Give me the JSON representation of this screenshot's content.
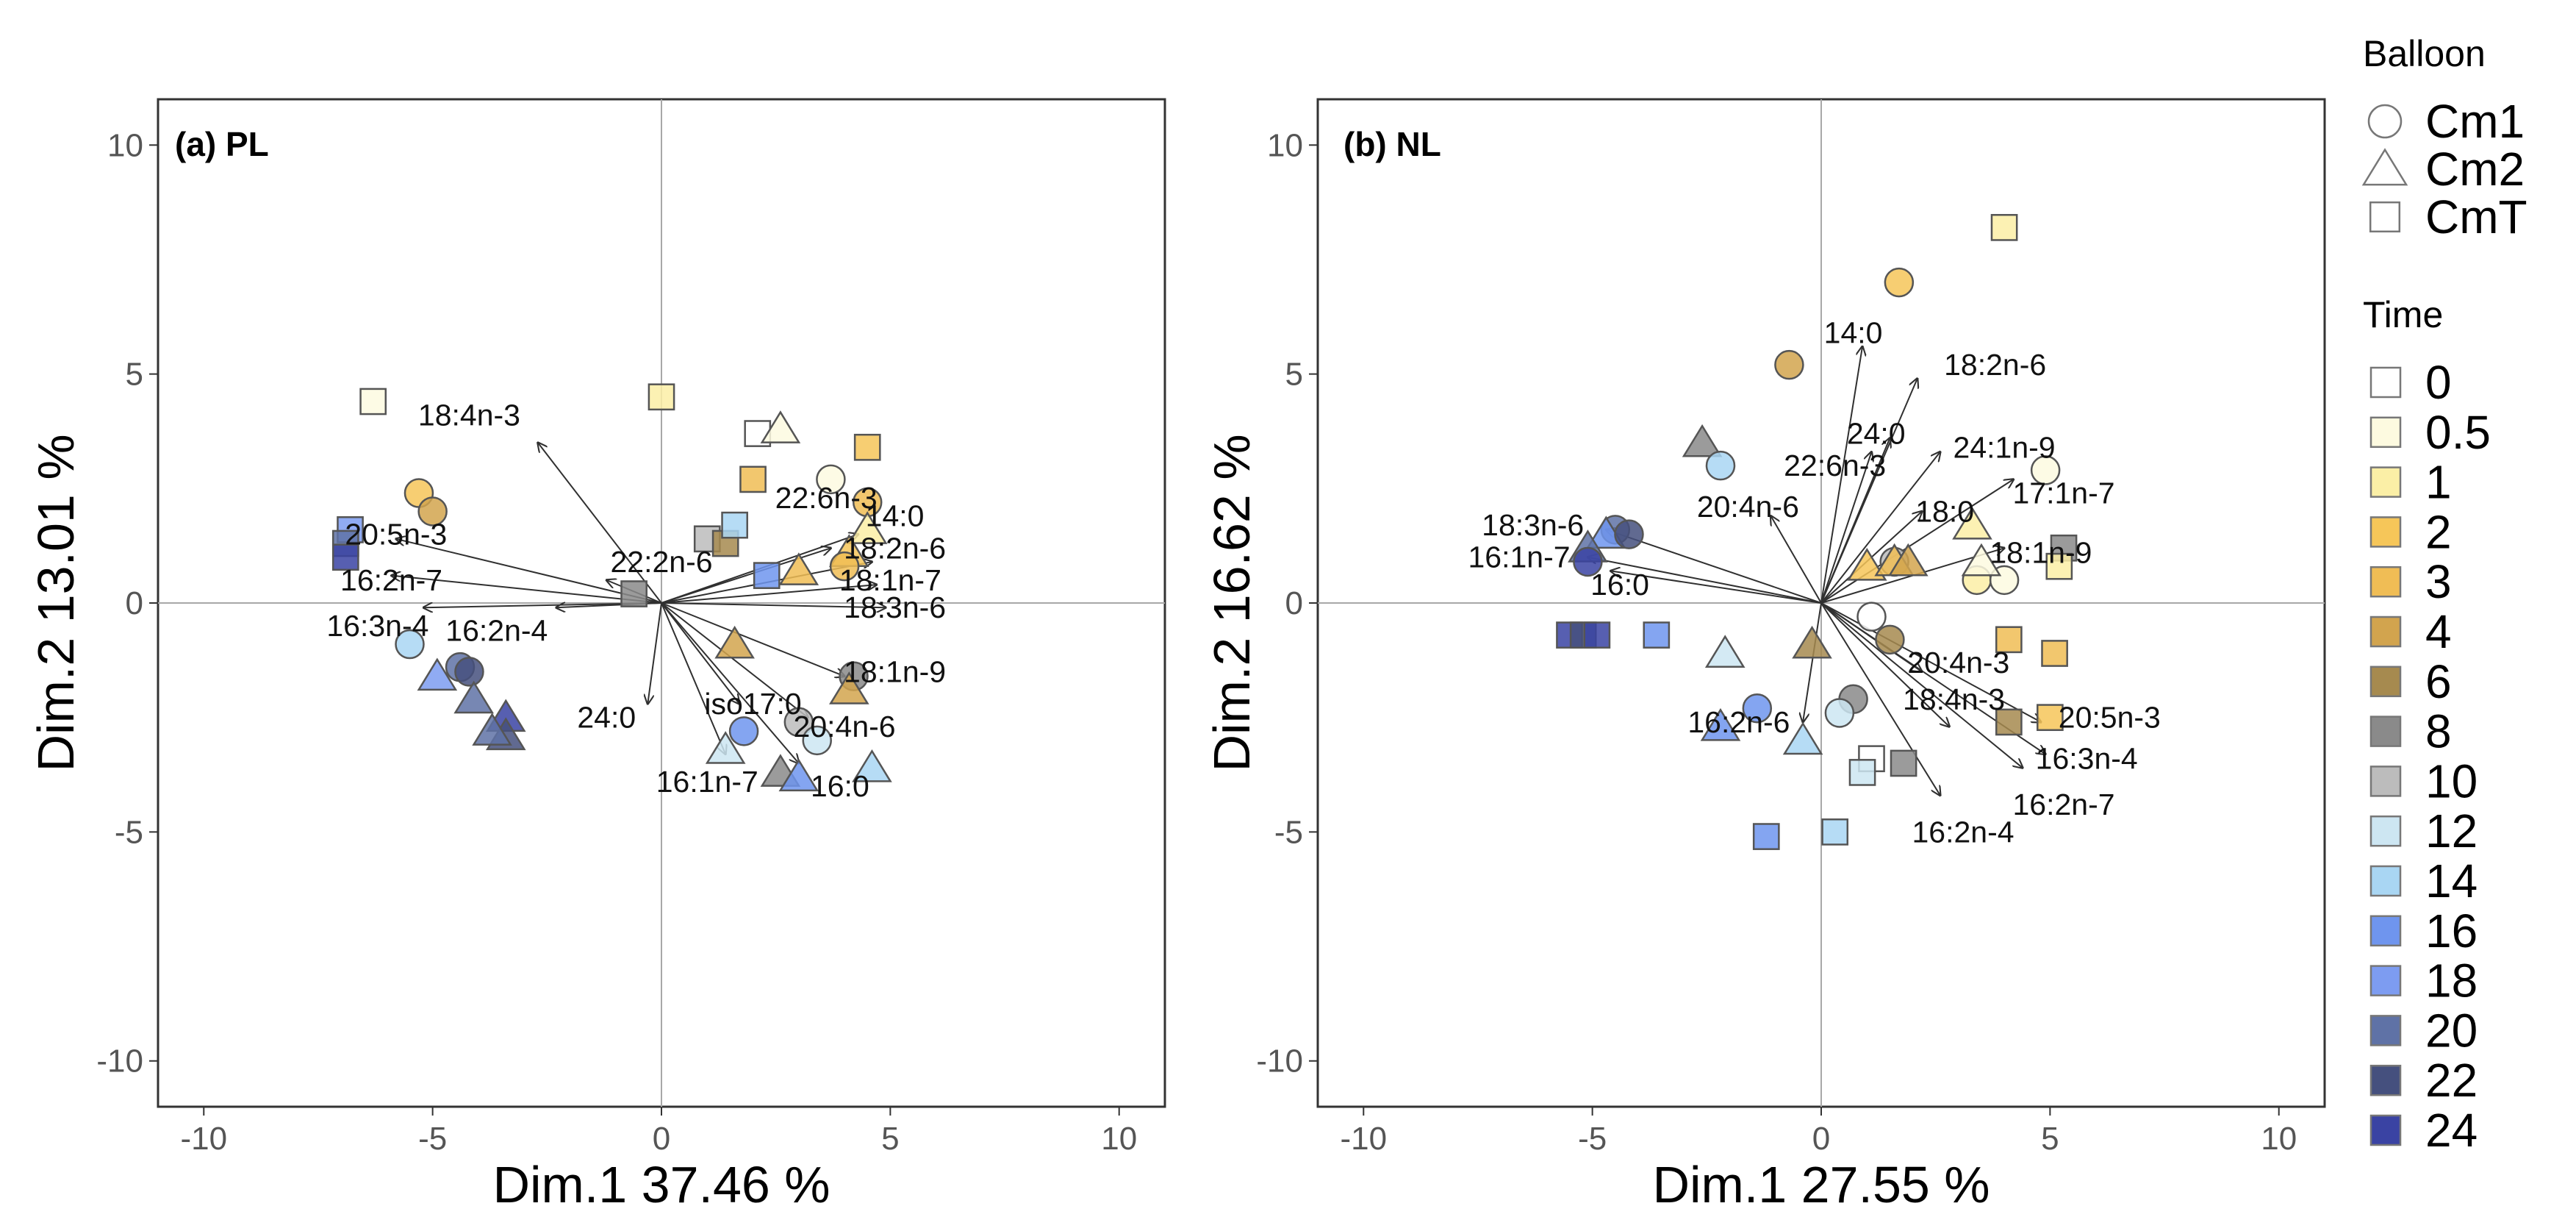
{
  "colors": {
    "t0": "#ffffff",
    "t0_5": "#fdfae0",
    "t1": "#fbefa6",
    "t2": "#f6c659",
    "t3": "#f0bd55",
    "t4": "#d2a44e",
    "t6": "#a68a4f",
    "t8": "#8a8a8a",
    "t10": "#bcbcbc",
    "t12": "#cde6f2",
    "t14": "#a9d6f3",
    "t16": "#6f95ee",
    "t18": "#7d9cf1",
    "t20": "#5f72a6",
    "t22": "#45507e",
    "t24": "#3a43a3",
    "arrow": "#303030",
    "axis_line": "#a8a8a8",
    "frame": "#333333",
    "marker_edge": "#555555"
  },
  "legend": {
    "balloon_title": "Balloon",
    "balloon": [
      {
        "label": "Cm1",
        "shape": "circle"
      },
      {
        "label": "Cm2",
        "shape": "triangle"
      },
      {
        "label": "CmT",
        "shape": "square"
      }
    ],
    "time_title": "Time",
    "time": [
      {
        "label": "0",
        "color": "#ffffff"
      },
      {
        "label": "0.5",
        "color": "#fdfae0"
      },
      {
        "label": "1",
        "color": "#fbefa6"
      },
      {
        "label": "2",
        "color": "#f6c659"
      },
      {
        "label": "3",
        "color": "#f0bd55"
      },
      {
        "label": "4",
        "color": "#d2a44e"
      },
      {
        "label": "6",
        "color": "#a68a4f"
      },
      {
        "label": "8",
        "color": "#8a8a8a"
      },
      {
        "label": "10",
        "color": "#bcbcbc"
      },
      {
        "label": "12",
        "color": "#cde6f2"
      },
      {
        "label": "14",
        "color": "#a9d6f3"
      },
      {
        "label": "16",
        "color": "#6f95ee"
      },
      {
        "label": "18",
        "color": "#7d9cf1"
      },
      {
        "label": "20",
        "color": "#5f72a6"
      },
      {
        "label": "22",
        "color": "#45507e"
      },
      {
        "label": "24",
        "color": "#3a43a3"
      }
    ]
  },
  "chart_data": [
    {
      "type": "scatter",
      "title": "(a) PL",
      "xlabel": "Dim.1 37.46 %",
      "ylabel": "Dim.2 13.01 %",
      "xlim": [
        -11,
        11
      ],
      "ylim": [
        -11,
        11
      ],
      "xticks": [
        -10,
        -5,
        0,
        5,
        10
      ],
      "yticks": [
        -10,
        -5,
        0,
        5,
        10
      ],
      "xtick_labels": [
        "-10",
        "-5",
        "0",
        "5",
        "10"
      ],
      "ytick_labels": [
        "-10",
        "-5",
        "0",
        "5",
        "10"
      ],
      "grid": false,
      "vectors": [
        {
          "label": "18:4n-3",
          "x": -2.7,
          "y": 3.5,
          "lx": -4.2,
          "ly": 4.1
        },
        {
          "label": "20:5n-3",
          "x": -5.8,
          "y": 1.4,
          "lx": -5.8,
          "ly": 1.5
        },
        {
          "label": "16:2n-7",
          "x": -5.9,
          "y": 0.6,
          "lx": -5.9,
          "ly": 0.5
        },
        {
          "label": "16:3n-4",
          "x": -5.2,
          "y": -0.1,
          "lx": -6.2,
          "ly": -0.5
        },
        {
          "label": "16:2n-4",
          "x": -2.3,
          "y": -0.1,
          "lx": -3.6,
          "ly": -0.6
        },
        {
          "label": "22:2n-6",
          "x": -1.2,
          "y": 0.5,
          "lx": 0.0,
          "ly": 0.9
        },
        {
          "label": "24:0",
          "x": -0.3,
          "y": -2.2,
          "lx": -1.2,
          "ly": -2.5
        },
        {
          "label": "iso17:0",
          "x": 1.7,
          "y": -2.2,
          "lx": 2.0,
          "ly": -2.2
        },
        {
          "label": "16:1n-7",
          "x": 1.4,
          "y": -3.3,
          "lx": 1.0,
          "ly": -3.9
        },
        {
          "label": "16:0",
          "x": 3.0,
          "y": -3.5,
          "lx": 3.9,
          "ly": -4.0
        },
        {
          "label": "20:4n-6",
          "x": 3.2,
          "y": -2.5,
          "lx": 4.0,
          "ly": -2.7
        },
        {
          "label": "18:1n-9",
          "x": 4.0,
          "y": -1.6,
          "lx": 5.1,
          "ly": -1.5
        },
        {
          "label": "18:3n-6",
          "x": 4.9,
          "y": -0.1,
          "lx": 5.1,
          "ly": -0.1
        },
        {
          "label": "18:1n-7",
          "x": 4.7,
          "y": 0.4,
          "lx": 5.0,
          "ly": 0.5
        },
        {
          "label": "18:2n-6",
          "x": 4.6,
          "y": 0.9,
          "lx": 5.1,
          "ly": 1.2
        },
        {
          "label": "14:0",
          "x": 4.3,
          "y": 1.5,
          "lx": 5.1,
          "ly": 1.9
        },
        {
          "label": "22:6n-3",
          "x": 3.7,
          "y": 1.2,
          "lx": 3.6,
          "ly": 2.3
        }
      ],
      "points": [
        {
          "x": -6.3,
          "y": 4.4,
          "shape": "square",
          "time": "0.5"
        },
        {
          "x": 0.0,
          "y": 4.5,
          "shape": "square",
          "time": "1"
        },
        {
          "x": -5.3,
          "y": 2.4,
          "shape": "circle",
          "time": "2"
        },
        {
          "x": -5.0,
          "y": 2.0,
          "shape": "circle",
          "time": "4"
        },
        {
          "x": -6.8,
          "y": 1.6,
          "shape": "square",
          "time": "18"
        },
        {
          "x": -6.9,
          "y": 1.3,
          "shape": "square",
          "time": "20"
        },
        {
          "x": -6.9,
          "y": 1.0,
          "shape": "square",
          "time": "24"
        },
        {
          "x": -5.5,
          "y": -0.9,
          "shape": "circle",
          "time": "14"
        },
        {
          "x": -4.4,
          "y": -1.4,
          "shape": "circle",
          "time": "20"
        },
        {
          "x": -4.2,
          "y": -1.5,
          "shape": "circle",
          "time": "22"
        },
        {
          "x": -4.9,
          "y": -1.6,
          "shape": "triangle",
          "time": "18"
        },
        {
          "x": -4.1,
          "y": -2.1,
          "shape": "triangle",
          "time": "20"
        },
        {
          "x": -3.4,
          "y": -2.5,
          "shape": "triangle",
          "time": "24"
        },
        {
          "x": -3.4,
          "y": -2.9,
          "shape": "triangle",
          "time": "22"
        },
        {
          "x": -3.7,
          "y": -2.8,
          "shape": "triangle",
          "time": "20"
        },
        {
          "x": -0.6,
          "y": 0.2,
          "shape": "square",
          "time": "8"
        },
        {
          "x": 1.0,
          "y": 1.4,
          "shape": "square",
          "time": "10"
        },
        {
          "x": 1.4,
          "y": 1.3,
          "shape": "square",
          "time": "6"
        },
        {
          "x": 1.6,
          "y": 1.7,
          "shape": "square",
          "time": "14"
        },
        {
          "x": 2.1,
          "y": 3.7,
          "shape": "square",
          "time": "0"
        },
        {
          "x": 2.6,
          "y": 3.8,
          "shape": "triangle",
          "time": "0.5"
        },
        {
          "x": 2.0,
          "y": 2.7,
          "shape": "square",
          "time": "3"
        },
        {
          "x": 3.7,
          "y": 2.7,
          "shape": "circle",
          "time": "0.5"
        },
        {
          "x": 4.5,
          "y": 3.4,
          "shape": "square",
          "time": "2"
        },
        {
          "x": 4.5,
          "y": 2.2,
          "shape": "circle",
          "time": "3"
        },
        {
          "x": 4.5,
          "y": 1.6,
          "shape": "triangle",
          "time": "1"
        },
        {
          "x": 4.1,
          "y": 1.1,
          "shape": "triangle",
          "time": "2"
        },
        {
          "x": 4.0,
          "y": 0.8,
          "shape": "circle",
          "time": "3"
        },
        {
          "x": 3.0,
          "y": 0.7,
          "shape": "triangle",
          "time": "3"
        },
        {
          "x": 2.3,
          "y": 0.6,
          "shape": "square",
          "time": "16"
        },
        {
          "x": 1.6,
          "y": -0.9,
          "shape": "triangle",
          "time": "4"
        },
        {
          "x": 4.2,
          "y": -1.6,
          "shape": "circle",
          "time": "8"
        },
        {
          "x": 4.1,
          "y": -1.9,
          "shape": "triangle",
          "time": "4"
        },
        {
          "x": 3.0,
          "y": -2.6,
          "shape": "circle",
          "time": "10"
        },
        {
          "x": 3.4,
          "y": -3.0,
          "shape": "circle",
          "time": "12"
        },
        {
          "x": 1.8,
          "y": -2.8,
          "shape": "circle",
          "time": "16"
        },
        {
          "x": 1.4,
          "y": -3.2,
          "shape": "triangle",
          "time": "12"
        },
        {
          "x": 2.6,
          "y": -3.7,
          "shape": "triangle",
          "time": "8"
        },
        {
          "x": 3.0,
          "y": -3.8,
          "shape": "triangle",
          "time": "16"
        },
        {
          "x": 4.6,
          "y": -3.6,
          "shape": "triangle",
          "time": "14"
        }
      ]
    },
    {
      "type": "scatter",
      "title": "(b) NL",
      "xlabel": "Dim.1 27.55 %",
      "ylabel": "Dim.2 16.62 %",
      "xlim": [
        -11,
        11
      ],
      "ylim": [
        -11,
        11
      ],
      "xticks": [
        -10,
        -5,
        0,
        5,
        10
      ],
      "yticks": [
        -10,
        -5,
        0,
        5,
        10
      ],
      "xtick_labels": [
        "-10",
        "-5",
        "0",
        "5",
        "10"
      ],
      "ytick_labels": [
        "-10",
        "-5",
        "0",
        "5",
        "10"
      ],
      "grid": false,
      "vectors": [
        {
          "label": "14:0",
          "x": 0.9,
          "y": 5.6,
          "lx": 0.7,
          "ly": 5.9
        },
        {
          "label": "18:2n-6",
          "x": 2.1,
          "y": 4.9,
          "lx": 3.8,
          "ly": 5.2
        },
        {
          "label": "24:0",
          "x": 1.5,
          "y": 3.6,
          "lx": 1.2,
          "ly": 3.7
        },
        {
          "label": "22:6n-3",
          "x": 1.1,
          "y": 3.3,
          "lx": 0.3,
          "ly": 3.0
        },
        {
          "label": "24:1n-9",
          "x": 2.6,
          "y": 3.3,
          "lx": 4.0,
          "ly": 3.4
        },
        {
          "label": "17:1n-7",
          "x": 4.2,
          "y": 2.7,
          "lx": 5.3,
          "ly": 2.4
        },
        {
          "label": "18:0",
          "x": 2.2,
          "y": 2.0,
          "lx": 2.7,
          "ly": 2.0
        },
        {
          "label": "18:1n-9",
          "x": 4.0,
          "y": 1.2,
          "lx": 4.8,
          "ly": 1.1
        },
        {
          "label": "20:4n-6",
          "x": -1.1,
          "y": 1.9,
          "lx": -1.6,
          "ly": 2.1
        },
        {
          "label": "18:3n-6",
          "x": -4.7,
          "y": 1.6,
          "lx": -6.3,
          "ly": 1.7
        },
        {
          "label": "16:1n-7",
          "x": -5.1,
          "y": 1.0,
          "lx": -6.6,
          "ly": 1.0
        },
        {
          "label": "16:0",
          "x": -4.6,
          "y": 0.7,
          "lx": -4.4,
          "ly": 0.4
        },
        {
          "label": "16:2n-6",
          "x": -0.4,
          "y": -2.6,
          "lx": -1.8,
          "ly": -2.6
        },
        {
          "label": "20:4n-3",
          "x": 2.2,
          "y": -1.5,
          "lx": 3.0,
          "ly": -1.3
        },
        {
          "label": "18:4n-3",
          "x": 2.8,
          "y": -2.7,
          "lx": 2.9,
          "ly": -2.1
        },
        {
          "label": "20:5n-3",
          "x": 4.8,
          "y": -2.6,
          "lx": 6.3,
          "ly": -2.5
        },
        {
          "label": "16:3n-4",
          "x": 4.9,
          "y": -3.3,
          "lx": 5.8,
          "ly": -3.4
        },
        {
          "label": "16:2n-7",
          "x": 4.4,
          "y": -3.6,
          "lx": 5.3,
          "ly": -4.4
        },
        {
          "label": "16:2n-4",
          "x": 2.6,
          "y": -4.2,
          "lx": 3.1,
          "ly": -5.0
        }
      ],
      "points": [
        {
          "x": 4.0,
          "y": 8.2,
          "shape": "square",
          "time": "1"
        },
        {
          "x": 1.7,
          "y": 7.0,
          "shape": "circle",
          "time": "2"
        },
        {
          "x": -0.7,
          "y": 5.2,
          "shape": "circle",
          "time": "4"
        },
        {
          "x": -2.6,
          "y": 3.5,
          "shape": "triangle",
          "time": "8"
        },
        {
          "x": -2.2,
          "y": 3.0,
          "shape": "circle",
          "time": "14"
        },
        {
          "x": 4.9,
          "y": 2.9,
          "shape": "circle",
          "time": "0.5"
        },
        {
          "x": 3.3,
          "y": 1.7,
          "shape": "triangle",
          "time": "1"
        },
        {
          "x": 5.3,
          "y": 1.2,
          "shape": "square",
          "time": "8"
        },
        {
          "x": 5.2,
          "y": 0.8,
          "shape": "square",
          "time": "1"
        },
        {
          "x": 3.4,
          "y": 0.5,
          "shape": "circle",
          "time": "1"
        },
        {
          "x": 4.0,
          "y": 0.5,
          "shape": "circle",
          "time": "0.5"
        },
        {
          "x": 3.5,
          "y": 0.9,
          "shape": "triangle",
          "time": "0.5"
        },
        {
          "x": 1.6,
          "y": 0.9,
          "shape": "circle",
          "time": "10"
        },
        {
          "x": 1.0,
          "y": 0.8,
          "shape": "triangle",
          "time": "2"
        },
        {
          "x": 1.6,
          "y": 0.9,
          "shape": "triangle",
          "time": "3"
        },
        {
          "x": 1.9,
          "y": 0.9,
          "shape": "triangle",
          "time": "4"
        },
        {
          "x": -4.5,
          "y": 1.6,
          "shape": "circle",
          "time": "20"
        },
        {
          "x": -4.7,
          "y": 1.5,
          "shape": "triangle",
          "time": "16"
        },
        {
          "x": -5.1,
          "y": 1.2,
          "shape": "triangle",
          "time": "20"
        },
        {
          "x": -5.1,
          "y": 0.9,
          "shape": "circle",
          "time": "24"
        },
        {
          "x": -4.2,
          "y": 1.5,
          "shape": "circle",
          "time": "22"
        },
        {
          "x": -5.5,
          "y": -0.7,
          "shape": "square",
          "time": "24"
        },
        {
          "x": -5.2,
          "y": -0.7,
          "shape": "square",
          "time": "22"
        },
        {
          "x": -4.9,
          "y": -0.7,
          "shape": "square",
          "time": "24"
        },
        {
          "x": -3.6,
          "y": -0.7,
          "shape": "square",
          "time": "16"
        },
        {
          "x": -2.1,
          "y": -1.1,
          "shape": "triangle",
          "time": "12"
        },
        {
          "x": -0.2,
          "y": -0.9,
          "shape": "triangle",
          "time": "6"
        },
        {
          "x": 1.1,
          "y": -0.3,
          "shape": "circle",
          "time": "0"
        },
        {
          "x": 1.5,
          "y": -0.8,
          "shape": "circle",
          "time": "6"
        },
        {
          "x": 4.1,
          "y": -0.8,
          "shape": "square",
          "time": "3"
        },
        {
          "x": 5.1,
          "y": -1.1,
          "shape": "square",
          "time": "3"
        },
        {
          "x": 4.1,
          "y": -2.6,
          "shape": "square",
          "time": "6"
        },
        {
          "x": 5.0,
          "y": -2.5,
          "shape": "square",
          "time": "2"
        },
        {
          "x": 0.7,
          "y": -2.1,
          "shape": "circle",
          "time": "8"
        },
        {
          "x": 0.4,
          "y": -2.4,
          "shape": "circle",
          "time": "12"
        },
        {
          "x": -1.4,
          "y": -2.3,
          "shape": "circle",
          "time": "16"
        },
        {
          "x": -2.2,
          "y": -2.7,
          "shape": "triangle",
          "time": "16"
        },
        {
          "x": -0.4,
          "y": -3.0,
          "shape": "triangle",
          "time": "14"
        },
        {
          "x": 1.1,
          "y": -3.4,
          "shape": "square",
          "time": "0"
        },
        {
          "x": 0.9,
          "y": -3.7,
          "shape": "square",
          "time": "12"
        },
        {
          "x": 1.8,
          "y": -3.5,
          "shape": "square",
          "time": "8"
        },
        {
          "x": -1.2,
          "y": -5.1,
          "shape": "square",
          "time": "16"
        },
        {
          "x": 0.3,
          "y": -5.0,
          "shape": "square",
          "time": "14"
        }
      ]
    }
  ]
}
